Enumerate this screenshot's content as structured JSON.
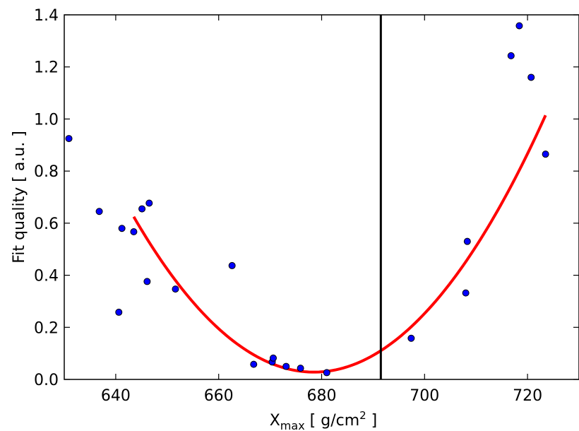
{
  "chart_data": {
    "type": "scatter",
    "title": "",
    "xlabel": {
      "main": "X",
      "sub": "max",
      "unit_pre": " [ g/cm",
      "unit_sup": "2",
      "unit_post": " ]"
    },
    "ylabel": "Fit quality [ a.u. ]",
    "xlim": [
      630,
      730
    ],
    "ylim": [
      0.0,
      1.4
    ],
    "x_ticks": [
      640,
      660,
      680,
      700,
      720
    ],
    "y_ticks": [
      "0.0",
      "0.2",
      "0.4",
      "0.6",
      "0.8",
      "1.0",
      "1.2",
      "1.4"
    ],
    "grid": false,
    "series": [
      {
        "kind": "points",
        "color": "#0000ff",
        "points": [
          {
            "x": 630.9,
            "y": 0.925
          },
          {
            "x": 636.8,
            "y": 0.645
          },
          {
            "x": 640.6,
            "y": 0.258
          },
          {
            "x": 641.2,
            "y": 0.58
          },
          {
            "x": 643.5,
            "y": 0.567
          },
          {
            "x": 645.1,
            "y": 0.655
          },
          {
            "x": 646.1,
            "y": 0.376
          },
          {
            "x": 646.5,
            "y": 0.677
          },
          {
            "x": 651.6,
            "y": 0.347
          },
          {
            "x": 662.6,
            "y": 0.437
          },
          {
            "x": 666.8,
            "y": 0.058
          },
          {
            "x": 670.4,
            "y": 0.067
          },
          {
            "x": 670.6,
            "y": 0.082
          },
          {
            "x": 673.1,
            "y": 0.05
          },
          {
            "x": 675.9,
            "y": 0.043
          },
          {
            "x": 681.0,
            "y": 0.026
          },
          {
            "x": 697.4,
            "y": 0.158
          },
          {
            "x": 708.0,
            "y": 0.332
          },
          {
            "x": 708.3,
            "y": 0.53
          },
          {
            "x": 716.8,
            "y": 1.243
          },
          {
            "x": 718.4,
            "y": 1.358
          },
          {
            "x": 720.7,
            "y": 1.16
          },
          {
            "x": 723.5,
            "y": 0.865
          }
        ]
      },
      {
        "kind": "fit",
        "color": "#ff0000",
        "x_range": [
          643.5,
          723.5
        ],
        "vertex_x": 678.5,
        "vertex_y": 0.028,
        "curvature": 0.000487
      }
    ],
    "vertical_line": {
      "x": 691.5,
      "color": "#000000"
    }
  }
}
